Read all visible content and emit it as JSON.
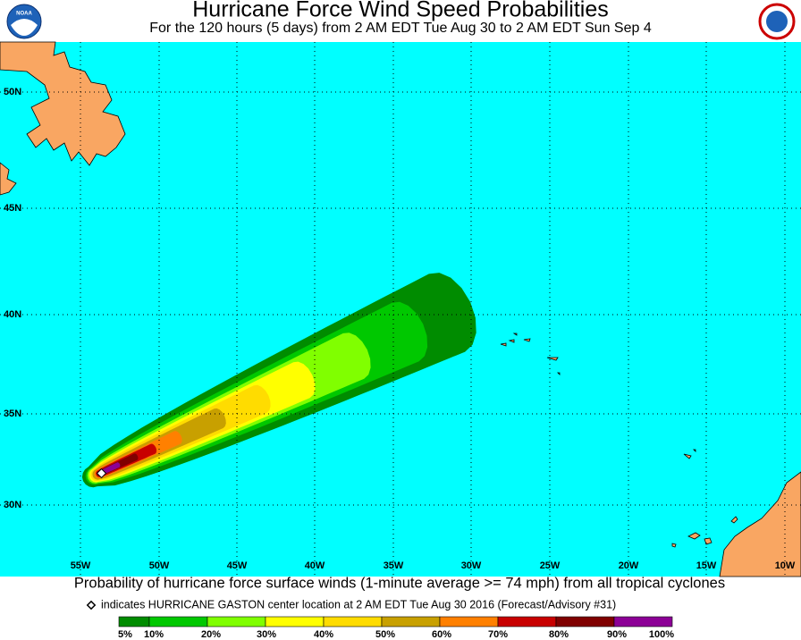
{
  "header": {
    "title": "Hurricane Force Wind Speed Probabilities",
    "subtitle": "For the 120 hours (5 days) from 2 AM EDT Tue Aug 30 to 2 AM EDT Sun Sep 4",
    "logo_text": "NOAA"
  },
  "map": {
    "lat_labels": [
      "50N",
      "45N",
      "40N",
      "35N",
      "30N"
    ],
    "lon_labels": [
      "55W",
      "50W",
      "45W",
      "40W",
      "35W",
      "30W",
      "25W",
      "20W",
      "15W",
      "10W"
    ],
    "land_color": "#f9a662",
    "ocean_color": "#00ffff"
  },
  "footer": {
    "caption": "Probability of hurricane force surface winds (1-minute average >= 74 mph) from all tropical cyclones",
    "note": "indicates HURRICANE GASTON center location at 2 AM EDT Tue Aug 30 2016 (Forecast/Advisory #31)"
  },
  "legend": {
    "labels": [
      "5%",
      "10%",
      "20%",
      "30%",
      "40%",
      "50%",
      "60%",
      "70%",
      "80%",
      "90%",
      "100%"
    ],
    "colors": [
      "#008c00",
      "#00c800",
      "#80ff00",
      "#ffff00",
      "#ffdc00",
      "#c8a000",
      "#ff8000",
      "#c80000",
      "#800000",
      "#8c0096"
    ]
  }
}
